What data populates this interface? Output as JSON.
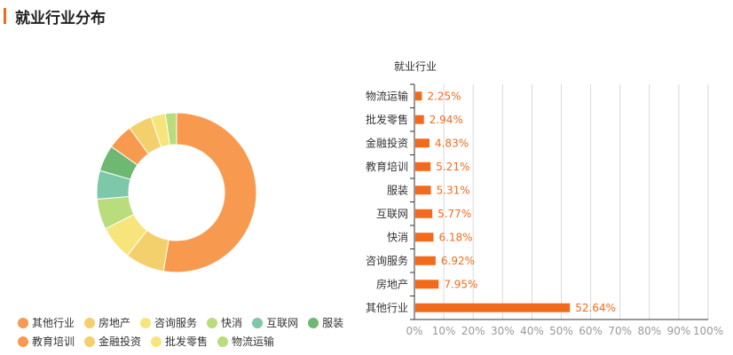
{
  "header": {
    "title": "就业行业分布"
  },
  "chart_data": [
    {
      "type": "pie",
      "variant": "donut",
      "slices": [
        {
          "label": "其他行业",
          "value": 52.64,
          "color": "#f79a4f"
        },
        {
          "label": "房地产",
          "value": 7.95,
          "color": "#f3d06b"
        },
        {
          "label": "咨询服务",
          "value": 6.92,
          "color": "#f5e57a"
        },
        {
          "label": "快消",
          "value": 6.18,
          "color": "#b9dc7c"
        },
        {
          "label": "互联网",
          "value": 5.77,
          "color": "#7cc8a9"
        },
        {
          "label": "服装",
          "value": 5.31,
          "color": "#6fb872"
        },
        {
          "label": "教育培训",
          "value": 5.21,
          "color": "#f79a4f"
        },
        {
          "label": "金融投资",
          "value": 4.83,
          "color": "#f3d06b"
        },
        {
          "label": "批发零售",
          "value": 2.94,
          "color": "#f5e57a"
        },
        {
          "label": "物流运输",
          "value": 2.25,
          "color": "#b9dc7c"
        }
      ],
      "legend": {
        "placement": "bottom-left",
        "rows": [
          [
            "其他行业",
            "房地产",
            "咨询服务",
            "快消",
            "互联网",
            "服装"
          ],
          [
            "教育培训",
            "金融投资",
            "批发零售",
            "物流运输"
          ]
        ]
      }
    },
    {
      "type": "bar",
      "orientation": "horizontal",
      "title": "就业行业",
      "categories": [
        "物流运输",
        "批发零售",
        "金融投资",
        "教育培训",
        "服装",
        "互联网",
        "快消",
        "咨询服务",
        "房地产",
        "其他行业"
      ],
      "values": [
        2.25,
        2.94,
        4.83,
        5.21,
        5.31,
        5.77,
        6.18,
        6.92,
        7.95,
        52.64
      ],
      "value_labels": [
        "2.25%",
        "2.94%",
        "4.83%",
        "5.21%",
        "5.31%",
        "5.77%",
        "6.18%",
        "6.92%",
        "7.95%",
        "52.64%"
      ],
      "xlim": [
        0,
        100
      ],
      "xticks": [
        "0%",
        "10%",
        "20%",
        "30%",
        "40%",
        "50%",
        "60%",
        "70%",
        "80%",
        "90%",
        "100%"
      ],
      "grid": true,
      "bar_color": "#f26b1d",
      "label_color": "#f26b1d"
    }
  ]
}
